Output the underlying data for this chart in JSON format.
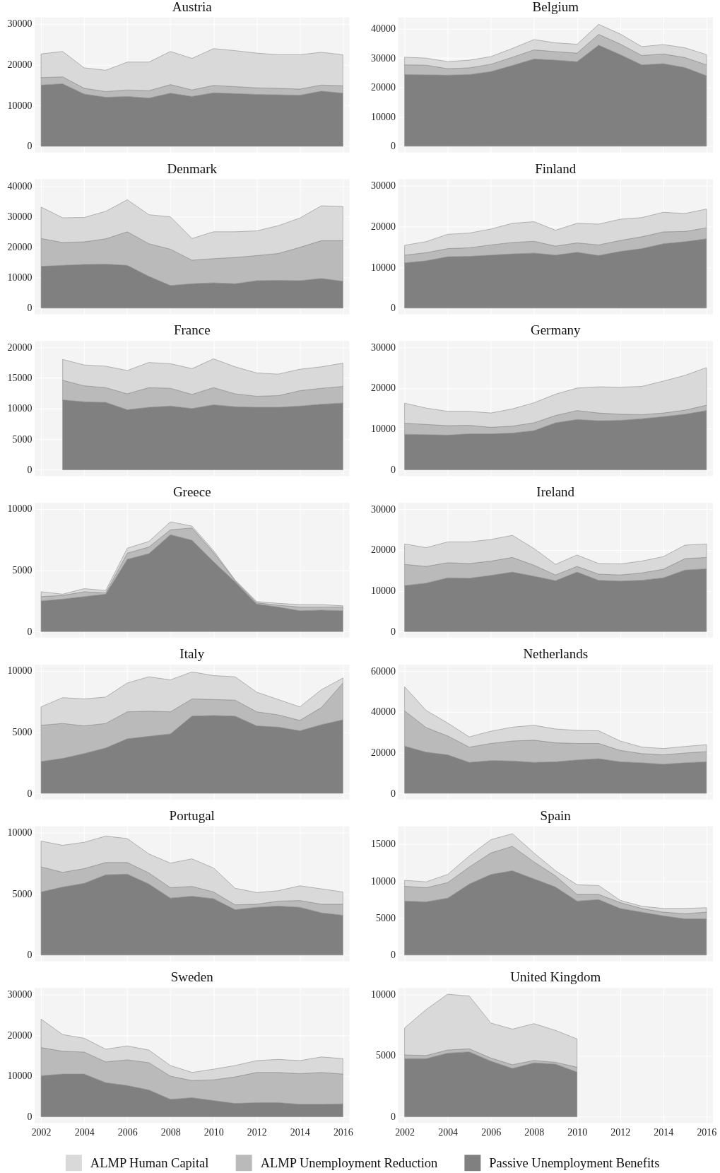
{
  "chart_data": [
    {
      "type": "area",
      "title": "Austria",
      "stacked": true,
      "grid": true,
      "legend": "bottom",
      "tick_labels": "y",
      "x": [
        2002,
        2003,
        2004,
        2005,
        2006,
        2007,
        2008,
        2009,
        2010,
        2011,
        2012,
        2013,
        2014,
        2015,
        2016
      ],
      "xlim": [
        2001.7,
        2016.3
      ],
      "xticks": [
        2002,
        2004,
        2006,
        2008,
        2010,
        2012,
        2014,
        2016
      ],
      "ylim": [
        -1500,
        31500
      ],
      "yticks": [
        0,
        10000,
        20000,
        30000
      ],
      "series": [
        {
          "name": "Passive Unemployment Benefits",
          "color": "#808080",
          "values": [
            15000,
            15300,
            12800,
            12000,
            12200,
            11800,
            13000,
            12200,
            13100,
            12900,
            12700,
            12600,
            12500,
            13500,
            13000
          ]
        },
        {
          "name": "ALMP Unemployment Reduction",
          "color": "#bababa",
          "values": [
            1800,
            1700,
            1400,
            1400,
            1600,
            1800,
            2100,
            1600,
            1800,
            1700,
            1600,
            1600,
            1500,
            1500,
            1800
          ]
        },
        {
          "name": "ALMP Human Capital",
          "color": "#d9d9d9",
          "values": [
            5800,
            6200,
            5000,
            5200,
            6800,
            7000,
            8100,
            7700,
            9000,
            8800,
            8500,
            8200,
            8400,
            8000,
            7600
          ]
        }
      ]
    },
    {
      "type": "area",
      "title": "Belgium",
      "stacked": true,
      "grid": true,
      "legend": "bottom",
      "tick_labels": "y",
      "x": [
        2002,
        2003,
        2004,
        2005,
        2006,
        2007,
        2008,
        2009,
        2010,
        2011,
        2012,
        2013,
        2014,
        2015,
        2016
      ],
      "xlim": [
        2001.7,
        2016.3
      ],
      "xticks": [
        2002,
        2004,
        2006,
        2008,
        2010,
        2012,
        2014,
        2016
      ],
      "ylim": [
        -2100,
        43800
      ],
      "yticks": [
        0,
        10000,
        20000,
        30000,
        40000
      ],
      "series": [
        {
          "name": "Passive Unemployment Benefits",
          "color": "#808080",
          "values": [
            24400,
            24300,
            24200,
            24400,
            25400,
            27500,
            29700,
            29300,
            28800,
            34400,
            31200,
            27700,
            28100,
            26800,
            24000
          ]
        },
        {
          "name": "ALMP Unemployment Reduction",
          "color": "#bababa",
          "values": [
            3300,
            3300,
            2200,
            2300,
            2500,
            2800,
            3100,
            2900,
            2900,
            3700,
            3600,
            3200,
            3300,
            3400,
            3700
          ]
        },
        {
          "name": "ALMP Human Capital",
          "color": "#d9d9d9",
          "values": [
            2600,
            2400,
            2400,
            2600,
            2600,
            3000,
            3500,
            3000,
            3000,
            3400,
            3400,
            3000,
            3200,
            3300,
            3500
          ]
        }
      ]
    },
    {
      "type": "area",
      "title": "Denmark",
      "stacked": true,
      "grid": true,
      "legend": "bottom",
      "tick_labels": "y",
      "x": [
        2002,
        2003,
        2004,
        2005,
        2006,
        2007,
        2008,
        2009,
        2010,
        2011,
        2012,
        2013,
        2014,
        2015,
        2016
      ],
      "xlim": [
        2001.7,
        2016.3
      ],
      "xticks": [
        2002,
        2004,
        2006,
        2008,
        2010,
        2012,
        2014,
        2016
      ],
      "ylim": [
        -2000,
        42200
      ],
      "yticks": [
        0,
        10000,
        20000,
        30000,
        40000
      ],
      "series": [
        {
          "name": "Passive Unemployment Benefits",
          "color": "#808080",
          "values": [
            13700,
            14000,
            14300,
            14400,
            14000,
            10400,
            7400,
            8000,
            8300,
            8000,
            9000,
            9100,
            9000,
            9700,
            8800
          ]
        },
        {
          "name": "ALMP Unemployment Reduction",
          "color": "#bababa",
          "values": [
            9100,
            7500,
            7400,
            8300,
            11000,
            10700,
            11900,
            7700,
            7900,
            8600,
            8200,
            8800,
            10900,
            12400,
            13300
          ]
        },
        {
          "name": "ALMP Human Capital",
          "color": "#d9d9d9",
          "values": [
            10300,
            8100,
            8000,
            9000,
            10500,
            9500,
            10600,
            7100,
            8800,
            8400,
            8100,
            9100,
            9600,
            11400,
            11200
          ]
        }
      ]
    },
    {
      "type": "area",
      "title": "Finland",
      "stacked": true,
      "grid": true,
      "legend": "bottom",
      "tick_labels": "y",
      "x": [
        2002,
        2003,
        2004,
        2005,
        2006,
        2007,
        2008,
        2009,
        2010,
        2011,
        2012,
        2013,
        2014,
        2015,
        2016
      ],
      "xlim": [
        2001.7,
        2016.3
      ],
      "xticks": [
        2002,
        2004,
        2006,
        2008,
        2010,
        2012,
        2014,
        2016
      ],
      "ylim": [
        -1500,
        31600
      ],
      "yticks": [
        0,
        10000,
        20000,
        30000
      ],
      "series": [
        {
          "name": "Passive Unemployment Benefits",
          "color": "#808080",
          "values": [
            11100,
            11600,
            12600,
            12700,
            13000,
            13300,
            13500,
            13000,
            13700,
            12900,
            13900,
            14600,
            15800,
            16300,
            17000
          ]
        },
        {
          "name": "ALMP Unemployment Reduction",
          "color": "#bababa",
          "values": [
            1900,
            2000,
            2000,
            2100,
            2500,
            2800,
            2900,
            2200,
            2300,
            2600,
            2700,
            2900,
            2900,
            2500,
            2700
          ]
        },
        {
          "name": "ALMP Human Capital",
          "color": "#d9d9d9",
          "values": [
            2400,
            2700,
            3500,
            3600,
            3900,
            4700,
            4800,
            3900,
            4800,
            5100,
            5200,
            4700,
            4800,
            4400,
            4600
          ]
        }
      ]
    },
    {
      "type": "area",
      "title": "France",
      "stacked": true,
      "grid": true,
      "legend": "bottom",
      "tick_labels": "y",
      "x": [
        2003,
        2004,
        2005,
        2006,
        2007,
        2008,
        2009,
        2010,
        2011,
        2012,
        2013,
        2014,
        2015,
        2016
      ],
      "xlim": [
        2001.7,
        2016.3
      ],
      "xticks": [
        2002,
        2004,
        2006,
        2008,
        2010,
        2012,
        2014,
        2016
      ],
      "ylim": [
        -1000,
        21000
      ],
      "yticks": [
        0,
        5000,
        10000,
        15000,
        20000
      ],
      "series": [
        {
          "name": "Passive Unemployment Benefits",
          "color": "#808080",
          "values": [
            11400,
            11100,
            11000,
            9800,
            10200,
            10400,
            10000,
            10600,
            10300,
            10200,
            10200,
            10400,
            10700,
            10900
          ]
        },
        {
          "name": "ALMP Unemployment Reduction",
          "color": "#bababa",
          "values": [
            3200,
            2600,
            2400,
            2600,
            3200,
            2900,
            2300,
            2800,
            2100,
            1800,
            1900,
            2500,
            2600,
            2700
          ]
        },
        {
          "name": "ALMP Human Capital",
          "color": "#d9d9d9",
          "values": [
            3400,
            3400,
            3500,
            3800,
            4100,
            4000,
            4200,
            4700,
            4400,
            3800,
            3500,
            3500,
            3500,
            3800
          ]
        }
      ]
    },
    {
      "type": "area",
      "title": "Germany",
      "stacked": true,
      "grid": true,
      "legend": "bottom",
      "tick_labels": "y",
      "x": [
        2002,
        2003,
        2004,
        2005,
        2006,
        2007,
        2008,
        2009,
        2010,
        2011,
        2012,
        2013,
        2014,
        2015,
        2016
      ],
      "xlim": [
        2001.7,
        2016.3
      ],
      "xticks": [
        2002,
        2004,
        2006,
        2008,
        2010,
        2012,
        2014,
        2016
      ],
      "ylim": [
        -1500,
        31500
      ],
      "yticks": [
        0,
        10000,
        20000,
        30000
      ],
      "series": [
        {
          "name": "Passive Unemployment Benefits",
          "color": "#808080",
          "values": [
            8700,
            8600,
            8500,
            8800,
            8800,
            9000,
            9600,
            11500,
            12300,
            12000,
            12100,
            12500,
            13000,
            13600,
            14500
          ]
        },
        {
          "name": "ALMP Unemployment Reduction",
          "color": "#bababa",
          "values": [
            2700,
            2500,
            2300,
            2100,
            1600,
            1700,
            1900,
            1800,
            2200,
            1900,
            1500,
            1000,
            900,
            1000,
            1300
          ]
        },
        {
          "name": "ALMP Human Capital",
          "color": "#d9d9d9",
          "values": [
            4900,
            4000,
            3500,
            3400,
            3500,
            4200,
            4900,
            5200,
            5500,
            6400,
            6600,
            6900,
            7800,
            8500,
            9200
          ]
        }
      ]
    },
    {
      "type": "area",
      "title": "Greece",
      "stacked": true,
      "grid": true,
      "legend": "bottom",
      "tick_labels": "y",
      "x": [
        2002,
        2003,
        2004,
        2005,
        2006,
        2007,
        2008,
        2009,
        2010,
        2011,
        2012,
        2013,
        2014,
        2015,
        2016
      ],
      "xlim": [
        2001.7,
        2016.3
      ],
      "xticks": [
        2002,
        2004,
        2006,
        2008,
        2010,
        2012,
        2014,
        2016
      ],
      "ylim": [
        -500,
        10500
      ],
      "yticks": [
        0,
        5000,
        10000
      ],
      "series": [
        {
          "name": "Passive Unemployment Benefits",
          "color": "#808080",
          "values": [
            2500,
            2650,
            2850,
            3050,
            5900,
            6350,
            7900,
            7450,
            5700,
            4050,
            2250,
            2000,
            1700,
            1750,
            1700
          ]
        },
        {
          "name": "ALMP Unemployment Reduction",
          "color": "#bababa",
          "values": [
            350,
            300,
            400,
            100,
            500,
            550,
            400,
            1000,
            750,
            100,
            100,
            150,
            300,
            250,
            300
          ]
        },
        {
          "name": "ALMP Human Capital",
          "color": "#d9d9d9",
          "values": [
            400,
            100,
            250,
            200,
            400,
            450,
            650,
            150,
            150,
            50,
            100,
            150,
            200,
            200,
            100
          ]
        }
      ]
    },
    {
      "type": "area",
      "title": "Ireland",
      "stacked": true,
      "grid": true,
      "legend": "bottom",
      "tick_labels": "y",
      "x": [
        2002,
        2003,
        2004,
        2005,
        2006,
        2007,
        2008,
        2009,
        2010,
        2011,
        2012,
        2013,
        2014,
        2015,
        2016
      ],
      "xlim": [
        2001.7,
        2016.3
      ],
      "xticks": [
        2002,
        2004,
        2006,
        2008,
        2010,
        2012,
        2014,
        2016
      ],
      "ylim": [
        -1500,
        31600
      ],
      "yticks": [
        0,
        10000,
        20000,
        30000
      ],
      "series": [
        {
          "name": "Passive Unemployment Benefits",
          "color": "#808080",
          "values": [
            11300,
            11900,
            13200,
            13100,
            13800,
            14600,
            13600,
            12500,
            14600,
            12600,
            12400,
            12600,
            13200,
            15100,
            15400
          ]
        },
        {
          "name": "ALMP Unemployment Reduction",
          "color": "#bababa",
          "values": [
            5200,
            4100,
            3700,
            3600,
            3500,
            3600,
            2700,
            1400,
            1400,
            1500,
            1500,
            1800,
            2100,
            2800,
            2800
          ]
        },
        {
          "name": "ALMP Human Capital",
          "color": "#d9d9d9",
          "values": [
            5000,
            4600,
            5100,
            5300,
            5300,
            5400,
            4100,
            2600,
            2800,
            2600,
            2700,
            2900,
            3100,
            3300,
            3300
          ]
        }
      ]
    },
    {
      "type": "area",
      "title": "Italy",
      "stacked": true,
      "grid": true,
      "legend": "bottom",
      "tick_labels": "y",
      "x": [
        2002,
        2003,
        2004,
        2005,
        2006,
        2007,
        2008,
        2009,
        2010,
        2011,
        2012,
        2013,
        2014,
        2015,
        2016
      ],
      "xlim": [
        2001.7,
        2016.3
      ],
      "xticks": [
        2002,
        2004,
        2006,
        2008,
        2010,
        2012,
        2014,
        2016
      ],
      "ylim": [
        -500,
        10500
      ],
      "yticks": [
        0,
        5000,
        10000
      ],
      "series": [
        {
          "name": "Passive Unemployment Benefits",
          "color": "#808080",
          "values": [
            2600,
            2850,
            3250,
            3700,
            4450,
            4650,
            4850,
            6300,
            6350,
            6300,
            5500,
            5400,
            5100,
            5600,
            6000
          ]
        },
        {
          "name": "ALMP Unemployment Reduction",
          "color": "#bababa",
          "values": [
            2950,
            2850,
            2250,
            2000,
            2200,
            2050,
            1800,
            1400,
            1300,
            1300,
            1150,
            1000,
            850,
            1400,
            3000
          ]
        },
        {
          "name": "ALMP Human Capital",
          "color": "#d9d9d9",
          "values": [
            1500,
            2100,
            2200,
            2150,
            2350,
            2800,
            2600,
            2200,
            1950,
            1900,
            1600,
            1250,
            1100,
            1450,
            400
          ]
        }
      ]
    },
    {
      "type": "area",
      "title": "Netherlands",
      "stacked": true,
      "grid": true,
      "legend": "bottom",
      "tick_labels": "y",
      "x": [
        2002,
        2003,
        2004,
        2005,
        2006,
        2007,
        2008,
        2009,
        2010,
        2011,
        2012,
        2013,
        2014,
        2015,
        2016
      ],
      "xlim": [
        2001.7,
        2016.3
      ],
      "xticks": [
        2002,
        2004,
        2006,
        2008,
        2010,
        2012,
        2014,
        2016
      ],
      "ylim": [
        -3000,
        63200
      ],
      "yticks": [
        0,
        20000,
        40000,
        60000
      ],
      "series": [
        {
          "name": "Passive Unemployment Benefits",
          "color": "#808080",
          "values": [
            23200,
            20200,
            18900,
            15200,
            16100,
            15900,
            15200,
            15500,
            16400,
            17000,
            15500,
            15000,
            14300,
            15000,
            15500
          ]
        },
        {
          "name": "ALMP Unemployment Reduction",
          "color": "#bababa",
          "values": [
            17300,
            12100,
            9300,
            7500,
            8400,
            9800,
            10900,
            9300,
            8100,
            7500,
            5600,
            4500,
            4600,
            4800,
            5000
          ]
        },
        {
          "name": "ALMP Human Capital",
          "color": "#d9d9d9",
          "values": [
            11800,
            8400,
            6300,
            5000,
            6000,
            6800,
            7300,
            6800,
            6400,
            6200,
            4600,
            3200,
            3100,
            3200,
            3400
          ]
        }
      ]
    },
    {
      "type": "area",
      "title": "Portugal",
      "stacked": true,
      "grid": true,
      "legend": "bottom",
      "tick_labels": "y",
      "x": [
        2002,
        2003,
        2004,
        2005,
        2006,
        2007,
        2008,
        2009,
        2010,
        2011,
        2012,
        2013,
        2014,
        2015,
        2016
      ],
      "xlim": [
        2001.7,
        2016.3
      ],
      "xticks": [
        2002,
        2004,
        2006,
        2008,
        2010,
        2012,
        2014,
        2016
      ],
      "ylim": [
        -500,
        10500
      ],
      "yticks": [
        0,
        5000,
        10000
      ],
      "series": [
        {
          "name": "Passive Unemployment Benefits",
          "color": "#808080",
          "values": [
            5150,
            5550,
            5850,
            6550,
            6600,
            5800,
            4650,
            4800,
            4600,
            3700,
            3900,
            4000,
            3900,
            3450,
            3250
          ]
        },
        {
          "name": "ALMP Unemployment Reduction",
          "color": "#bababa",
          "values": [
            2050,
            1200,
            1200,
            1000,
            950,
            900,
            850,
            800,
            550,
            400,
            250,
            400,
            550,
            700,
            900
          ]
        },
        {
          "name": "ALMP Human Capital",
          "color": "#d9d9d9",
          "values": [
            2100,
            2200,
            2150,
            2150,
            1950,
            1550,
            2000,
            2250,
            1950,
            1350,
            950,
            850,
            1200,
            1250,
            1000
          ]
        }
      ]
    },
    {
      "type": "area",
      "title": "Spain",
      "stacked": true,
      "grid": true,
      "legend": "bottom",
      "tick_labels": "y",
      "x": [
        2002,
        2003,
        2004,
        2005,
        2006,
        2007,
        2008,
        2009,
        2010,
        2011,
        2012,
        2013,
        2014,
        2015,
        2016
      ],
      "xlim": [
        2001.7,
        2016.3
      ],
      "xticks": [
        2002,
        2004,
        2006,
        2008,
        2010,
        2012,
        2014,
        2016
      ],
      "ylim": [
        -830,
        17400
      ],
      "yticks": [
        0,
        5000,
        10000,
        15000
      ],
      "series": [
        {
          "name": "Passive Unemployment Benefits",
          "color": "#808080",
          "values": [
            7300,
            7200,
            7700,
            9600,
            10900,
            11400,
            10300,
            9200,
            7300,
            7500,
            6300,
            5800,
            5300,
            4900,
            4900
          ]
        },
        {
          "name": "ALMP Unemployment Reduction",
          "color": "#bababa",
          "values": [
            2000,
            1900,
            2100,
            2300,
            2900,
            3300,
            2300,
            1500,
            900,
            700,
            800,
            500,
            500,
            700,
            900
          ]
        },
        {
          "name": "ALMP Human Capital",
          "color": "#d9d9d9",
          "values": [
            800,
            800,
            1100,
            1500,
            1800,
            1700,
            1200,
            700,
            1300,
            1200,
            300,
            300,
            500,
            700,
            600
          ]
        }
      ]
    },
    {
      "type": "area",
      "title": "Sweden",
      "stacked": true,
      "grid": true,
      "legend": "bottom",
      "x": [
        2002,
        2003,
        2004,
        2005,
        2006,
        2007,
        2008,
        2009,
        2010,
        2011,
        2012,
        2013,
        2014,
        2015,
        2016
      ],
      "xlim": [
        2001.7,
        2016.3
      ],
      "xticks": [
        2002,
        2004,
        2006,
        2008,
        2010,
        2012,
        2014,
        2016
      ],
      "ylim": [
        -1500,
        31600
      ],
      "yticks": [
        0,
        10000,
        20000,
        30000
      ],
      "series": [
        {
          "name": "Passive Unemployment Benefits",
          "color": "#808080",
          "values": [
            10100,
            10500,
            10500,
            8400,
            7700,
            6600,
            4300,
            4700,
            4000,
            3300,
            3500,
            3500,
            3100,
            3100,
            3200
          ]
        },
        {
          "name": "ALMP Unemployment Reduction",
          "color": "#bababa",
          "values": [
            6900,
            5600,
            5400,
            5100,
            6300,
            6700,
            5700,
            4200,
            5100,
            6500,
            7400,
            7400,
            7500,
            7800,
            7300
          ]
        },
        {
          "name": "ALMP Human Capital",
          "color": "#d9d9d9",
          "values": [
            7000,
            4100,
            3400,
            3100,
            3400,
            3100,
            2600,
            2000,
            2600,
            2800,
            2900,
            3200,
            3200,
            3800,
            3800
          ]
        }
      ]
    },
    {
      "type": "area",
      "title": "United Kingdom",
      "stacked": true,
      "grid": true,
      "legend": "bottom",
      "x": [
        2002,
        2003,
        2004,
        2005,
        2006,
        2007,
        2008,
        2009,
        2010
      ],
      "xlim": [
        2001.7,
        2016.3
      ],
      "xticks": [
        2002,
        2004,
        2006,
        2008,
        2010,
        2012,
        2014,
        2016
      ],
      "ylim": [
        -500,
        10500
      ],
      "yticks": [
        0,
        5000,
        10000
      ],
      "series": [
        {
          "name": "Passive Unemployment Benefits",
          "color": "#808080",
          "values": [
            4750,
            4750,
            5200,
            5300,
            4550,
            3950,
            4400,
            4300,
            3650
          ]
        },
        {
          "name": "ALMP Unemployment Reduction",
          "color": "#bababa",
          "values": [
            300,
            250,
            250,
            250,
            250,
            300,
            200,
            150,
            400
          ]
        },
        {
          "name": "ALMP Human Capital",
          "color": "#d9d9d9",
          "values": [
            2200,
            3750,
            4550,
            4300,
            2850,
            2900,
            3000,
            2600,
            2300
          ]
        }
      ]
    }
  ]
}
